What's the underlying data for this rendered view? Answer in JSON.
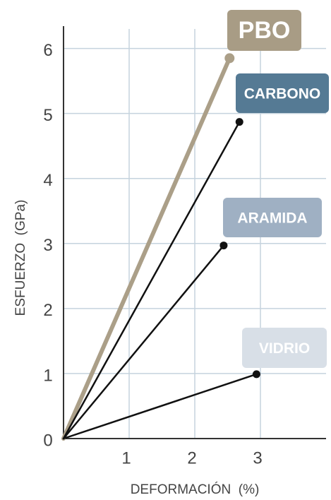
{
  "chart_data": {
    "type": "line",
    "xlabel": "DEFORMACIÓN  (%)",
    "ylabel": "ESFUERZO  (GPa)",
    "xlim": [
      0,
      4
    ],
    "ylim": [
      0,
      6.3
    ],
    "xticks": [
      1,
      2,
      3
    ],
    "yticks": [
      0,
      1,
      2,
      3,
      4,
      5,
      6
    ],
    "grid": true,
    "grid_color": "#c5d3de",
    "series": [
      {
        "name": "PBO",
        "color": "#ab9f88",
        "label_color": "#a89c85",
        "label_text_color": "#ffffff",
        "x": [
          0,
          2.53
        ],
        "values": [
          0,
          5.85
        ]
      },
      {
        "name": "CARBONO",
        "color": "#111111",
        "label_color": "#557a94",
        "label_text_color": "#ffffff",
        "x": [
          0,
          2.68
        ],
        "values": [
          0,
          4.87
        ]
      },
      {
        "name": "ARAMIDA",
        "color": "#111111",
        "label_color": "#9fb0c3",
        "label_text_color": "#ffffff",
        "x": [
          0,
          2.44
        ],
        "values": [
          0,
          2.97
        ]
      },
      {
        "name": "VIDRIO",
        "color": "#111111",
        "label_color": "#d8dfe7",
        "label_text_color": "#557a94",
        "x": [
          0,
          2.94
        ],
        "values": [
          0,
          0.99
        ]
      }
    ]
  }
}
